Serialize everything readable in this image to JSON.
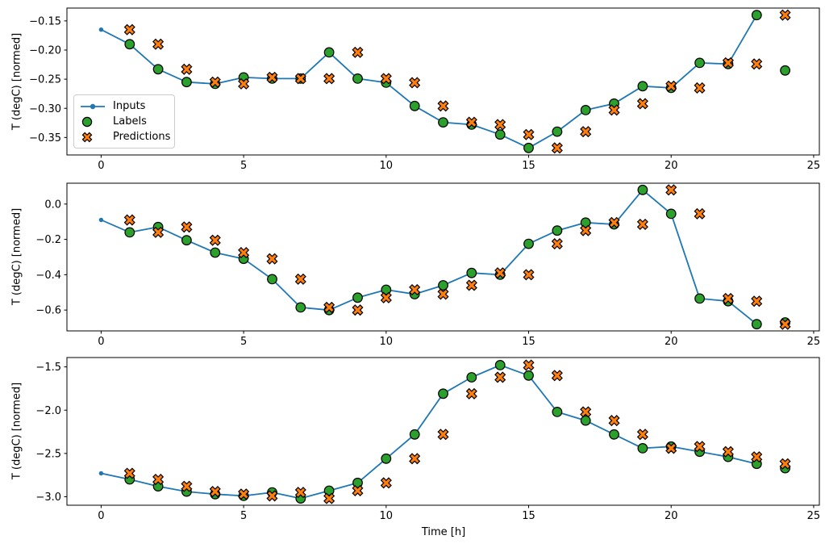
{
  "figure": {
    "xlabel": "Time [h]",
    "background": "#ffffff",
    "text_color": "#000000",
    "colors": {
      "inputs": "#1f77b4",
      "labels": "#2ca02c",
      "predictions": "#ff7f0e",
      "marker_edge": "#000000",
      "spine": "#000000",
      "legend_border": "#cccccc"
    },
    "legend": {
      "position": "lower-left-of-top-subplot",
      "items": [
        {
          "label": "Inputs",
          "marker": "line-with-dot"
        },
        {
          "label": "Labels",
          "marker": "filled-circle"
        },
        {
          "label": "Predictions",
          "marker": "filled-x"
        }
      ]
    }
  },
  "chart_data": [
    {
      "type": "line",
      "title": "",
      "ylabel": "T (degC) [normed]",
      "xlim": [
        -1.2,
        25.2
      ],
      "ylim": [
        -0.38,
        -0.128
      ],
      "grid": false,
      "xticks": [
        0,
        5,
        10,
        15,
        20,
        25
      ],
      "xtick_labels": [
        "0",
        "5",
        "10",
        "15",
        "20",
        "25"
      ],
      "yticks": [
        -0.15,
        -0.2,
        -0.25,
        -0.3,
        -0.35
      ],
      "ytick_labels": [
        "−0.15",
        "−0.20",
        "−0.25",
        "−0.30",
        "−0.35"
      ],
      "series": [
        {
          "name": "Inputs",
          "kind": "line",
          "x": [
            0,
            1,
            2,
            3,
            4,
            5,
            6,
            7,
            8,
            9,
            10,
            11,
            12,
            13,
            14,
            15,
            16,
            17,
            18,
            19,
            20,
            21,
            22,
            23
          ],
          "y": [
            -0.165,
            -0.19,
            -0.233,
            -0.255,
            -0.258,
            -0.247,
            -0.249,
            -0.249,
            -0.204,
            -0.249,
            -0.256,
            -0.296,
            -0.324,
            -0.328,
            -0.345,
            -0.368,
            -0.34,
            -0.303,
            -0.292,
            -0.262,
            -0.265,
            -0.222,
            -0.224,
            -0.14
          ]
        },
        {
          "name": "Labels",
          "kind": "scatter_circle",
          "x": [
            1,
            2,
            3,
            4,
            5,
            6,
            7,
            8,
            9,
            10,
            11,
            12,
            13,
            14,
            15,
            16,
            17,
            18,
            19,
            20,
            21,
            22,
            23,
            24
          ],
          "y": [
            -0.19,
            -0.233,
            -0.255,
            -0.258,
            -0.247,
            -0.249,
            -0.249,
            -0.204,
            -0.249,
            -0.256,
            -0.296,
            -0.324,
            -0.328,
            -0.345,
            -0.368,
            -0.34,
            -0.303,
            -0.292,
            -0.262,
            -0.265,
            -0.222,
            -0.224,
            -0.14,
            -0.235
          ]
        },
        {
          "name": "Predictions",
          "kind": "scatter_x",
          "x": [
            1,
            2,
            3,
            4,
            5,
            6,
            7,
            8,
            9,
            10,
            11,
            12,
            13,
            14,
            15,
            16,
            17,
            18,
            19,
            20,
            21,
            22,
            23,
            24
          ],
          "y": [
            -0.165,
            -0.19,
            -0.233,
            -0.255,
            -0.258,
            -0.247,
            -0.249,
            -0.249,
            -0.204,
            -0.249,
            -0.256,
            -0.296,
            -0.324,
            -0.328,
            -0.345,
            -0.368,
            -0.34,
            -0.303,
            -0.292,
            -0.262,
            -0.265,
            -0.222,
            -0.224,
            -0.14
          ]
        }
      ]
    },
    {
      "type": "line",
      "title": "",
      "ylabel": "T (degC) [normed]",
      "xlim": [
        -1.2,
        25.2
      ],
      "ylim": [
        -0.718,
        0.118
      ],
      "grid": false,
      "xticks": [
        0,
        5,
        10,
        15,
        20,
        25
      ],
      "xtick_labels": [
        "0",
        "5",
        "10",
        "15",
        "20",
        "25"
      ],
      "yticks": [
        0.0,
        -0.2,
        -0.4,
        -0.6
      ],
      "ytick_labels": [
        "0.0",
        "−0.2",
        "−0.4",
        "−0.6"
      ],
      "series": [
        {
          "name": "Inputs",
          "kind": "line",
          "x": [
            0,
            1,
            2,
            3,
            4,
            5,
            6,
            7,
            8,
            9,
            10,
            11,
            12,
            13,
            14,
            15,
            16,
            17,
            18,
            19,
            20,
            21,
            22,
            23
          ],
          "y": [
            -0.09,
            -0.16,
            -0.13,
            -0.205,
            -0.275,
            -0.31,
            -0.425,
            -0.585,
            -0.6,
            -0.53,
            -0.485,
            -0.51,
            -0.46,
            -0.39,
            -0.4,
            -0.225,
            -0.15,
            -0.105,
            -0.115,
            0.08,
            -0.055,
            -0.535,
            -0.55,
            -0.68
          ]
        },
        {
          "name": "Labels",
          "kind": "scatter_circle",
          "x": [
            1,
            2,
            3,
            4,
            5,
            6,
            7,
            8,
            9,
            10,
            11,
            12,
            13,
            14,
            15,
            16,
            17,
            18,
            19,
            20,
            21,
            22,
            23,
            24
          ],
          "y": [
            -0.16,
            -0.13,
            -0.205,
            -0.275,
            -0.31,
            -0.425,
            -0.585,
            -0.6,
            -0.53,
            -0.485,
            -0.51,
            -0.46,
            -0.39,
            -0.4,
            -0.225,
            -0.15,
            -0.105,
            -0.115,
            0.08,
            -0.055,
            -0.535,
            -0.55,
            -0.68,
            -0.67
          ]
        },
        {
          "name": "Predictions",
          "kind": "scatter_x",
          "x": [
            1,
            2,
            3,
            4,
            5,
            6,
            7,
            8,
            9,
            10,
            11,
            12,
            13,
            14,
            15,
            16,
            17,
            18,
            19,
            20,
            21,
            22,
            23,
            24
          ],
          "y": [
            -0.09,
            -0.16,
            -0.13,
            -0.205,
            -0.275,
            -0.31,
            -0.425,
            -0.585,
            -0.6,
            -0.53,
            -0.485,
            -0.51,
            -0.46,
            -0.39,
            -0.4,
            -0.225,
            -0.15,
            -0.105,
            -0.115,
            0.08,
            -0.055,
            -0.535,
            -0.55,
            -0.68
          ]
        }
      ]
    },
    {
      "type": "line",
      "title": "",
      "ylabel": "T (degC) [normed]",
      "xlim": [
        -1.2,
        25.2
      ],
      "ylim": [
        -3.098,
        -1.392
      ],
      "grid": false,
      "xticks": [
        0,
        5,
        10,
        15,
        20,
        25
      ],
      "xtick_labels": [
        "0",
        "5",
        "10",
        "15",
        "20",
        "25"
      ],
      "yticks": [
        -1.5,
        -2.0,
        -2.5,
        -3.0
      ],
      "ytick_labels": [
        "−1.5",
        "−2.0",
        "−2.5",
        "−3.0"
      ],
      "series": [
        {
          "name": "Inputs",
          "kind": "line",
          "x": [
            0,
            1,
            2,
            3,
            4,
            5,
            6,
            7,
            8,
            9,
            10,
            11,
            12,
            13,
            14,
            15,
            16,
            17,
            18,
            19,
            20,
            21,
            22,
            23
          ],
          "y": [
            -2.73,
            -2.8,
            -2.88,
            -2.94,
            -2.97,
            -2.99,
            -2.95,
            -3.02,
            -2.93,
            -2.84,
            -2.56,
            -2.28,
            -1.81,
            -1.62,
            -1.48,
            -1.6,
            -2.02,
            -2.12,
            -2.28,
            -2.44,
            -2.42,
            -2.48,
            -2.54,
            -2.62
          ]
        },
        {
          "name": "Labels",
          "kind": "scatter_circle",
          "x": [
            1,
            2,
            3,
            4,
            5,
            6,
            7,
            8,
            9,
            10,
            11,
            12,
            13,
            14,
            15,
            16,
            17,
            18,
            19,
            20,
            21,
            22,
            23,
            24
          ],
          "y": [
            -2.8,
            -2.88,
            -2.94,
            -2.97,
            -2.99,
            -2.95,
            -3.02,
            -2.93,
            -2.84,
            -2.56,
            -2.28,
            -1.81,
            -1.62,
            -1.48,
            -1.6,
            -2.02,
            -2.12,
            -2.28,
            -2.44,
            -2.42,
            -2.48,
            -2.54,
            -2.62,
            -2.67
          ]
        },
        {
          "name": "Predictions",
          "kind": "scatter_x",
          "x": [
            1,
            2,
            3,
            4,
            5,
            6,
            7,
            8,
            9,
            10,
            11,
            12,
            13,
            14,
            15,
            16,
            17,
            18,
            19,
            20,
            21,
            22,
            23,
            24
          ],
          "y": [
            -2.73,
            -2.8,
            -2.88,
            -2.94,
            -2.97,
            -2.99,
            -2.95,
            -3.02,
            -2.93,
            -2.84,
            -2.56,
            -2.28,
            -1.81,
            -1.62,
            -1.48,
            -1.6,
            -2.02,
            -2.12,
            -2.28,
            -2.44,
            -2.42,
            -2.48,
            -2.54,
            -2.62
          ]
        }
      ]
    }
  ]
}
